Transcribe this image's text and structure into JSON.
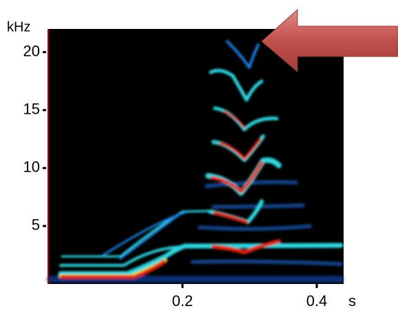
{
  "chart_data": {
    "type": "spectrogram",
    "y_label": "kHz",
    "x_label": "s",
    "xlim": [
      0,
      0.44
    ],
    "ylim": [
      0,
      22
    ],
    "xticks": [
      0.2,
      0.4
    ],
    "yticks": [
      5,
      10,
      15,
      20
    ],
    "axis_color": "#c00000",
    "background": "#000000"
  }
}
